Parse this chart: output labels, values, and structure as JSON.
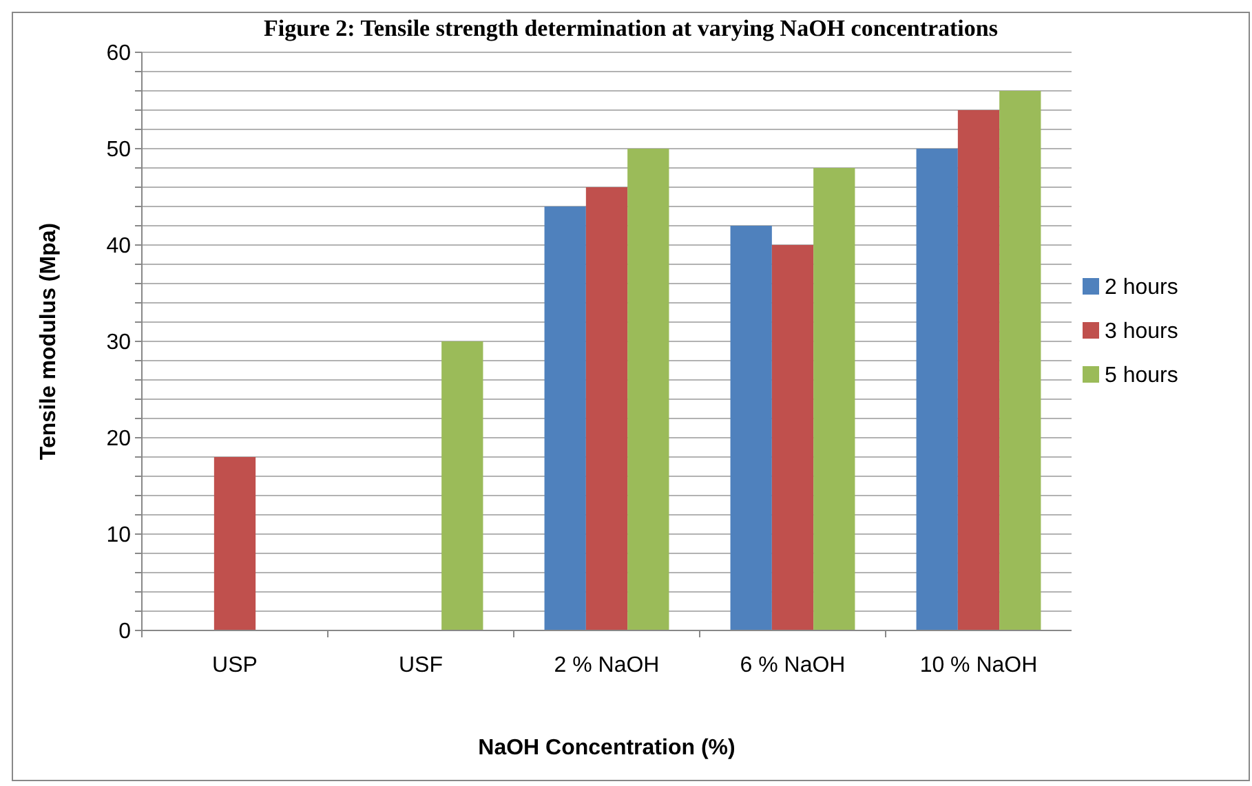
{
  "chart_data": {
    "type": "bar",
    "title": "Figure 2: Tensile strength determination at varying NaOH concentrations",
    "xlabel": "NaOH Concentration (%)",
    "ylabel": "Tensile modulus (Mpa)",
    "categories": [
      "USP",
      "USF",
      "2 % NaOH",
      "6 % NaOH",
      "10 % NaOH"
    ],
    "series": [
      {
        "name": "2 hours",
        "color": "#4f81bd",
        "values": [
          null,
          null,
          44,
          42,
          50
        ]
      },
      {
        "name": "3 hours",
        "color": "#c0504d",
        "values": [
          18,
          null,
          46,
          40,
          54
        ]
      },
      {
        "name": "5 hours",
        "color": "#9bbb59",
        "values": [
          null,
          30,
          50,
          48,
          56
        ]
      }
    ],
    "ylim": [
      0,
      60
    ],
    "yticks": [
      0,
      {
        "value": 2,
        "label": null
      },
      {
        "value": 4,
        "label": null
      },
      {
        "value": 6,
        "label": null
      },
      {
        "value": 8,
        "label": null
      },
      10,
      {
        "value": 12,
        "label": null
      },
      {
        "value": 14,
        "label": null
      },
      {
        "value": 16,
        "label": null
      },
      {
        "value": 18,
        "label": null
      },
      20,
      {
        "value": 22,
        "label": null
      },
      {
        "value": 24,
        "label": null
      },
      {
        "value": 26,
        "label": null
      },
      {
        "value": 28,
        "label": null
      },
      30,
      {
        "value": 32,
        "label": null
      },
      {
        "value": 34,
        "label": null
      },
      {
        "value": 36,
        "label": null
      },
      {
        "value": 38,
        "label": null
      },
      40,
      {
        "value": 42,
        "label": null
      },
      {
        "value": 44,
        "label": null
      },
      {
        "value": 46,
        "label": null
      },
      {
        "value": 48,
        "label": null
      },
      50,
      {
        "value": 52,
        "label": null
      },
      {
        "value": 54,
        "label": null
      },
      {
        "value": 56,
        "label": null
      },
      {
        "value": 58,
        "label": null
      },
      60
    ],
    "grid": "y",
    "legend": "right"
  }
}
